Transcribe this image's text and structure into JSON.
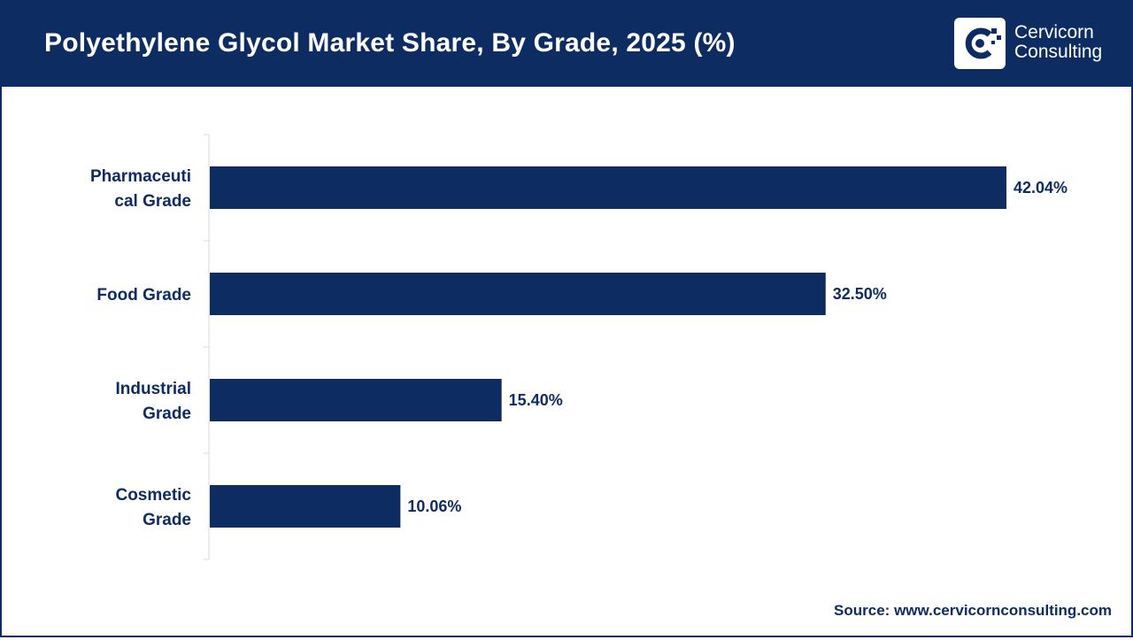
{
  "header": {
    "title": "Polyethylene Glycol Market Share, By Grade, 2025 (%)",
    "logo_line1": "Cervicorn",
    "logo_line2": "Consulting"
  },
  "footer": {
    "source_label": "Source:",
    "source_url": "www.cervicornconsulting.com"
  },
  "colors": {
    "brand": "#0d2d62",
    "bar": "#0d2d62",
    "text": "#0d2d62"
  },
  "chart_data": {
    "type": "bar",
    "orientation": "horizontal",
    "categories": [
      [
        "Pharmaceuti",
        "cal Grade"
      ],
      [
        "Food Grade"
      ],
      [
        "Industrial",
        "Grade"
      ],
      [
        "Cosmetic",
        "Grade"
      ]
    ],
    "values": [
      42.04,
      32.5,
      15.4,
      10.06
    ],
    "value_labels": [
      "42.04%",
      "32.50%",
      "15.40%",
      "10.06%"
    ],
    "unit": "%",
    "xlim": [
      0,
      42.04
    ],
    "grid": false,
    "legend": "none"
  }
}
